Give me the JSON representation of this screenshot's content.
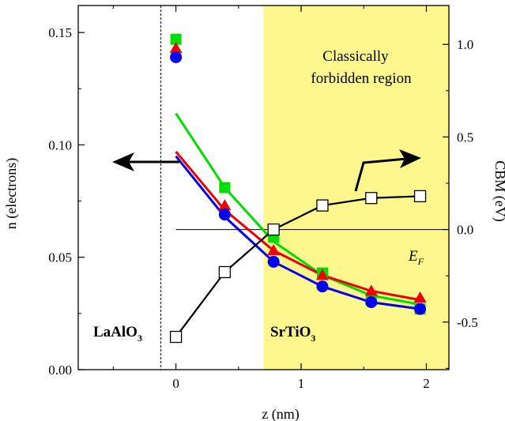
{
  "chart_data": {
    "type": "scatter",
    "xlabel": "z (nm)",
    "ylabel_left": "n (electrons)",
    "ylabel_right": "CBM (eV)",
    "xlim": [
      -0.78,
      2.18
    ],
    "ylim_left": [
      0.0,
      0.162
    ],
    "ylim_right": [
      -0.757,
      1.21
    ],
    "x_ticks": [
      0,
      1,
      2
    ],
    "y_left_ticks": [
      0.0,
      0.05,
      0.1,
      0.15
    ],
    "y_right_ticks": [
      -0.5,
      0.0,
      0.5,
      1.0
    ],
    "x_tick_labels": [
      "0",
      "1",
      "2"
    ],
    "y_left_tick_labels": [
      "0.00",
      "0.05",
      "0.10",
      "0.15"
    ],
    "y_right_tick_labels": [
      "-0.5",
      "0.0",
      "0.5",
      "1.0"
    ],
    "interface_x": -0.12,
    "fermi_level": 0.0,
    "forbidden_region_x": [
      0.7,
      2.18
    ],
    "forbidden_region_color": "#fdf78e",
    "grid": false,
    "series": [
      {
        "color": "#00dd00",
        "marker": "square",
        "axis": "left",
        "points": [
          [
            0.0,
            0.147
          ],
          [
            0.39,
            0.081
          ],
          [
            0.78,
            0.059
          ],
          [
            1.17,
            0.043
          ],
          [
            1.56,
            0.031
          ],
          [
            1.95,
            0.027
          ]
        ],
        "fit": [
          [
            0.0,
            0.114
          ],
          [
            0.39,
            0.081
          ],
          [
            0.78,
            0.057
          ],
          [
            1.17,
            0.042
          ],
          [
            1.56,
            0.033
          ],
          [
            1.95,
            0.029
          ]
        ]
      },
      {
        "color": "#ee0000",
        "marker": "triangle",
        "axis": "left",
        "points": [
          [
            0.0,
            0.143
          ],
          [
            0.39,
            0.073
          ],
          [
            0.78,
            0.053
          ],
          [
            1.17,
            0.042
          ],
          [
            1.56,
            0.035
          ],
          [
            1.95,
            0.032
          ]
        ],
        "fit": [
          [
            0.0,
            0.097
          ],
          [
            0.39,
            0.071
          ],
          [
            0.78,
            0.053
          ],
          [
            1.17,
            0.042
          ],
          [
            1.56,
            0.035
          ],
          [
            1.95,
            0.031
          ]
        ]
      },
      {
        "color": "#0000ee",
        "marker": "circle",
        "axis": "left",
        "points": [
          [
            0.0,
            0.139
          ],
          [
            0.39,
            0.069
          ],
          [
            0.78,
            0.048
          ],
          [
            1.17,
            0.037
          ],
          [
            1.56,
            0.03
          ],
          [
            1.95,
            0.027
          ]
        ],
        "fit": [
          [
            0.0,
            0.095
          ],
          [
            0.39,
            0.068
          ],
          [
            0.78,
            0.048
          ],
          [
            1.17,
            0.037
          ],
          [
            1.56,
            0.03
          ],
          [
            1.95,
            0.027
          ]
        ]
      },
      {
        "color": "#000000",
        "marker": "open-square",
        "axis": "right",
        "points": [
          [
            0.0,
            -0.58
          ],
          [
            0.39,
            -0.23
          ],
          [
            0.78,
            0.0
          ],
          [
            1.17,
            0.13
          ],
          [
            1.56,
            0.17
          ],
          [
            1.95,
            0.18
          ]
        ]
      }
    ],
    "annotations": {
      "forbidden_line1": "Classically",
      "forbidden_line2": "forbidden region",
      "fermi": "E",
      "fermi_sub": "F",
      "laalo_main": "LaAlO",
      "laalo_sub": "3",
      "srtio_main": "SrTiO",
      "srtio_sub": "3"
    },
    "arrows": {
      "left_arrow": "points toward left axis (n)",
      "right_arrow": "points toward right axis (CBM)"
    }
  }
}
